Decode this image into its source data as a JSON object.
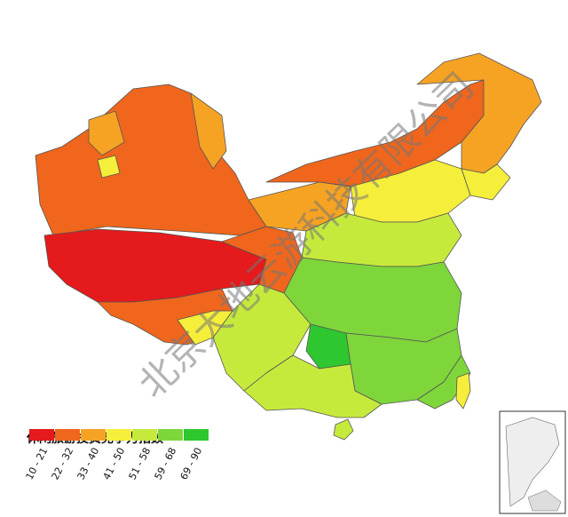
{
  "legend": {
    "title": "休闲旅游投资竞争力指数",
    "items": [
      {
        "label": "10 - 21",
        "color": "#e41a1c"
      },
      {
        "label": "22 - 32",
        "color": "#f0661c"
      },
      {
        "label": "33 - 40",
        "color": "#f6a323"
      },
      {
        "label": "41 - 50",
        "color": "#f5ee3a"
      },
      {
        "label": "51 - 58",
        "color": "#c6ea3c"
      },
      {
        "label": "59 - 68",
        "color": "#7ed63b"
      },
      {
        "label": "69 - 90",
        "color": "#2fc72f"
      }
    ]
  },
  "watermark": "北京大地云游科技有限公司"
}
